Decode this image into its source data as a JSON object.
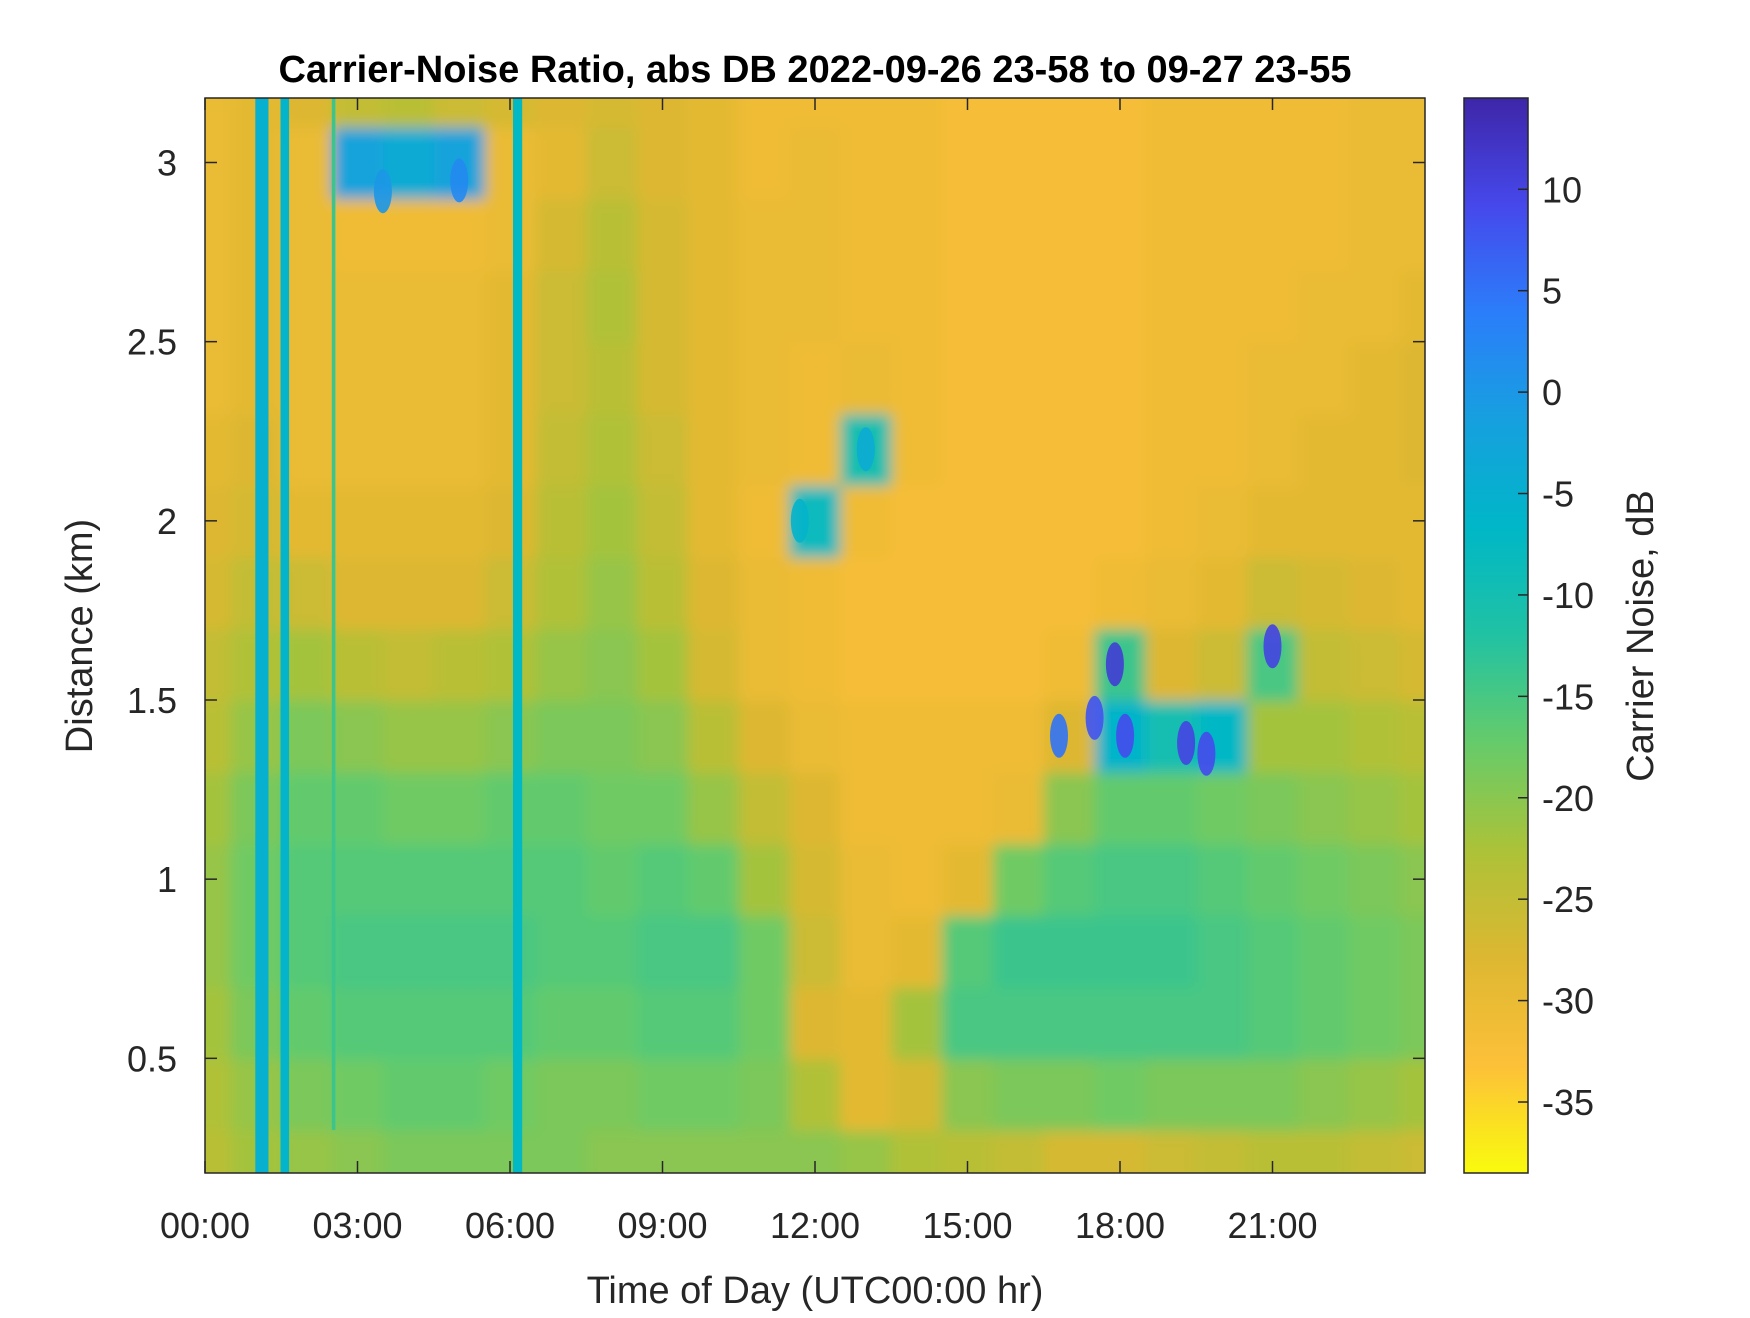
{
  "chart_data": {
    "type": "heatmap",
    "title": "Carrier-Noise Ratio, abs DB 2022-09-26 23-58 to 09-27 23-55",
    "xlabel": "Time of Day (UTC00:00 hr)",
    "ylabel": "Distance (km)",
    "xlim": [
      0,
      24
    ],
    "ylim": [
      0.18,
      3.18
    ],
    "x_ticks": [
      {
        "value": 0,
        "label": "00:00"
      },
      {
        "value": 3,
        "label": "03:00"
      },
      {
        "value": 6,
        "label": "06:00"
      },
      {
        "value": 9,
        "label": "09:00"
      },
      {
        "value": 12,
        "label": "12:00"
      },
      {
        "value": 15,
        "label": "15:00"
      },
      {
        "value": 18,
        "label": "18:00"
      },
      {
        "value": 21,
        "label": "21:00"
      }
    ],
    "y_ticks": [
      {
        "value": 0.5,
        "label": "0.5"
      },
      {
        "value": 1,
        "label": "1"
      },
      {
        "value": 1.5,
        "label": "1.5"
      },
      {
        "value": 2,
        "label": "2"
      },
      {
        "value": 2.5,
        "label": "2.5"
      },
      {
        "value": 3,
        "label": "3"
      }
    ],
    "colorbar": {
      "label": "Carrier Noise, dB",
      "range": [
        -38.5,
        14.5
      ],
      "colormap": "parula",
      "ticks": [
        {
          "value": -35,
          "label": "-35"
        },
        {
          "value": -30,
          "label": "-30"
        },
        {
          "value": -25,
          "label": "-25"
        },
        {
          "value": -20,
          "label": "-20"
        },
        {
          "value": -15,
          "label": "-15"
        },
        {
          "value": -10,
          "label": "-10"
        },
        {
          "value": -5,
          "label": "-5"
        },
        {
          "value": 0,
          "label": "0"
        },
        {
          "value": 5,
          "label": "5"
        },
        {
          "value": 10,
          "label": "10"
        }
      ]
    },
    "time_hours": [
      0,
      1,
      2,
      3,
      4,
      5,
      6,
      7,
      8,
      9,
      10,
      11,
      12,
      13,
      14,
      15,
      16,
      17,
      18,
      19,
      20,
      21,
      22,
      23,
      24
    ],
    "distance_km": [
      0.2,
      0.4,
      0.6,
      0.8,
      1.0,
      1.2,
      1.4,
      1.6,
      1.8,
      2.0,
      2.2,
      2.4,
      2.6,
      2.8,
      3.0,
      3.2
    ],
    "cnr_db": [
      [
        -24,
        -22,
        -21,
        -20,
        -19,
        -19,
        -19,
        -19,
        -20,
        -20,
        -20,
        -20,
        -20,
        -21,
        -23,
        -24,
        -25,
        -27,
        -27,
        -26,
        -25,
        -24,
        -24,
        -25,
        -26
      ],
      [
        -23,
        -21,
        -19,
        -18,
        -17,
        -17,
        -18,
        -19,
        -19,
        -18,
        -18,
        -19,
        -23,
        -29,
        -27,
        -20,
        -19,
        -19,
        -18,
        -19,
        -19,
        -19,
        -20,
        -21,
        -22
      ],
      [
        -22,
        -19,
        -17,
        -16,
        -16,
        -16,
        -16,
        -17,
        -17,
        -16,
        -16,
        -18,
        -28,
        -29,
        -22,
        -15,
        -15,
        -15,
        -15,
        -15,
        -15,
        -16,
        -17,
        -18,
        -19
      ],
      [
        -21,
        -18,
        -16,
        -15,
        -15,
        -15,
        -15,
        -16,
        -16,
        -15,
        -15,
        -18,
        -26,
        -30,
        -29,
        -16,
        -14,
        -14,
        -14,
        -14,
        -15,
        -16,
        -17,
        -18,
        -19
      ],
      [
        -21,
        -18,
        -16,
        -16,
        -16,
        -16,
        -16,
        -16,
        -17,
        -16,
        -17,
        -22,
        -27,
        -30,
        -31,
        -29,
        -18,
        -16,
        -15,
        -15,
        -16,
        -17,
        -18,
        -19,
        -20
      ],
      [
        -22,
        -19,
        -17,
        -17,
        -18,
        -18,
        -17,
        -17,
        -18,
        -18,
        -21,
        -25,
        -28,
        -31,
        -31,
        -31,
        -30,
        -20,
        -17,
        -17,
        -18,
        -19,
        -20,
        -21,
        -22
      ],
      [
        -24,
        -21,
        -19,
        -20,
        -21,
        -21,
        -20,
        -19,
        -19,
        -20,
        -24,
        -28,
        -30,
        -31,
        -31,
        -31,
        -31,
        -28,
        -6,
        -10,
        -7,
        -22,
        -22,
        -23,
        -24
      ],
      [
        -25,
        -23,
        -22,
        -24,
        -25,
        -24,
        -23,
        -21,
        -20,
        -22,
        -27,
        -30,
        -31,
        -32,
        -32,
        -32,
        -32,
        -31,
        -14,
        -28,
        -26,
        -15,
        -25,
        -26,
        -27
      ],
      [
        -27,
        -25,
        -26,
        -28,
        -28,
        -28,
        -26,
        -23,
        -21,
        -24,
        -28,
        -30,
        -31,
        -32,
        -32,
        -32,
        -32,
        -32,
        -31,
        -30,
        -29,
        -26,
        -27,
        -28,
        -29
      ],
      [
        -28,
        -27,
        -29,
        -29,
        -29,
        -29,
        -28,
        -24,
        -22,
        -25,
        -29,
        -31,
        -8,
        -31,
        -32,
        -32,
        -32,
        -32,
        -32,
        -31,
        -30,
        -29,
        -29,
        -29,
        -29
      ],
      [
        -29,
        -28,
        -30,
        -30,
        -30,
        -30,
        -29,
        -25,
        -23,
        -26,
        -29,
        -30,
        -31,
        -10,
        -31,
        -32,
        -32,
        -32,
        -32,
        -31,
        -31,
        -30,
        -29,
        -29,
        -28
      ],
      [
        -30,
        -29,
        -30,
        -30,
        -30,
        -30,
        -29,
        -26,
        -24,
        -27,
        -29,
        -30,
        -31,
        -30,
        -31,
        -32,
        -32,
        -32,
        -32,
        -31,
        -31,
        -30,
        -30,
        -29,
        -28
      ],
      [
        -30,
        -29,
        -30,
        -30,
        -30,
        -30,
        -29,
        -26,
        -23,
        -27,
        -29,
        -30,
        -30,
        -31,
        -31,
        -32,
        -32,
        -32,
        -32,
        -31,
        -31,
        -31,
        -30,
        -30,
        -29
      ],
      [
        -30,
        -29,
        -30,
        -31,
        -31,
        -31,
        -30,
        -27,
        -24,
        -27,
        -29,
        -30,
        -30,
        -31,
        -31,
        -32,
        -32,
        -32,
        -32,
        -31,
        -31,
        -31,
        -31,
        -30,
        -30
      ],
      [
        -30,
        -29,
        -30,
        -2,
        -4,
        -2,
        -30,
        -29,
        -26,
        -28,
        -29,
        -31,
        -30,
        -31,
        -31,
        -32,
        -32,
        -32,
        -32,
        -31,
        -31,
        -31,
        -31,
        -30,
        -30
      ],
      [
        -30,
        -29,
        -28,
        -25,
        -24,
        -26,
        -27,
        -28,
        -27,
        -28,
        -29,
        -31,
        -31,
        -31,
        -31,
        -32,
        -32,
        -32,
        -32,
        -31,
        -31,
        -31,
        -31,
        -30,
        -30
      ]
    ],
    "vertical_streaks": [
      {
        "time_h": 1.12,
        "width_h": 0.26,
        "value_db": -5,
        "y_from": 0.18,
        "y_to": 3.18
      },
      {
        "time_h": 1.57,
        "width_h": 0.17,
        "value_db": -6,
        "y_from": 0.18,
        "y_to": 3.18
      },
      {
        "time_h": 2.53,
        "width_h": 0.07,
        "value_db": -14,
        "y_from": 0.3,
        "y_to": 3.18
      },
      {
        "time_h": 6.15,
        "width_h": 0.18,
        "value_db": -7,
        "y_from": 0.18,
        "y_to": 3.18
      }
    ],
    "blobs": [
      {
        "time_h": 17.5,
        "distance_km": 1.45,
        "value_db": 8
      },
      {
        "time_h": 17.9,
        "distance_km": 1.6,
        "value_db": 11
      },
      {
        "time_h": 18.1,
        "distance_km": 1.4,
        "value_db": 9
      },
      {
        "time_h": 19.3,
        "distance_km": 1.38,
        "value_db": 10
      },
      {
        "time_h": 19.7,
        "distance_km": 1.35,
        "value_db": 9
      },
      {
        "time_h": 21.0,
        "distance_km": 1.65,
        "value_db": 10
      },
      {
        "time_h": 16.8,
        "distance_km": 1.4,
        "value_db": 5
      },
      {
        "time_h": 11.7,
        "distance_km": 2.0,
        "value_db": -6
      },
      {
        "time_h": 13.0,
        "distance_km": 2.2,
        "value_db": -4
      },
      {
        "time_h": 3.5,
        "distance_km": 2.92,
        "value_db": 0
      },
      {
        "time_h": 5.0,
        "distance_km": 2.95,
        "value_db": 2
      }
    ]
  }
}
